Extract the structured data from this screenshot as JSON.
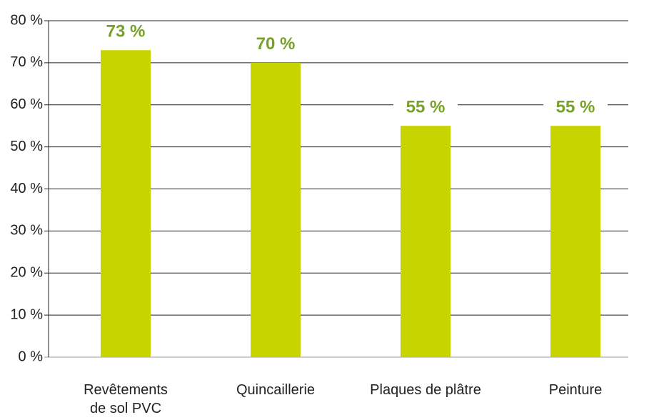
{
  "chart_data": {
    "type": "bar",
    "categories": [
      "Revêtements de sol PVC",
      "Quincaillerie",
      "Plaques de plâtre",
      "Peinture"
    ],
    "values": [
      73,
      70,
      55,
      55
    ],
    "value_labels": [
      "73 %",
      "70 %",
      "55 %",
      "55 %"
    ],
    "color": "#c8d400",
    "label_color": "#76a12a",
    "ylim": [
      0,
      80
    ],
    "yticks": [
      {
        "value": 0,
        "label": "0 %"
      },
      {
        "value": 10,
        "label": "10 %"
      },
      {
        "value": 20,
        "label": "20 %"
      },
      {
        "value": 30,
        "label": "30 %"
      },
      {
        "value": 40,
        "label": "40 %"
      },
      {
        "value": 50,
        "label": "50 %"
      },
      {
        "value": 60,
        "label": "60 %"
      },
      {
        "value": 70,
        "label": "70 %"
      },
      {
        "value": 80,
        "label": "80 %"
      }
    ],
    "grid": true
  }
}
